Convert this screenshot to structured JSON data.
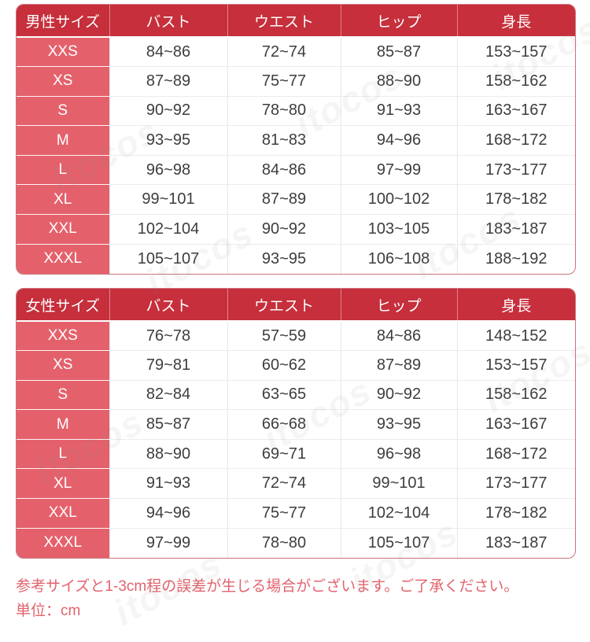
{
  "watermark": {
    "text": "itocos"
  },
  "colors": {
    "header_bg": "#c62f3b",
    "row_label_bg": "#e4616c",
    "note_text": "#e2636e",
    "table_border": "#c9747c",
    "body_text": "#3d3d3d"
  },
  "notes": {
    "line1": "参考サイズと1-3cm程の誤差が生じる場合がございます。ご了承ください。",
    "line2": "単位：cm"
  },
  "chart_data": [
    {
      "type": "table",
      "title": "男性サイズ",
      "columns": [
        "男性サイズ",
        "バスト",
        "ウエスト",
        "ヒップ",
        "身長"
      ],
      "rows": [
        [
          "XXS",
          "84~86",
          "72~74",
          "85~87",
          "153~157"
        ],
        [
          "XS",
          "87~89",
          "75~77",
          "88~90",
          "158~162"
        ],
        [
          "S",
          "90~92",
          "78~80",
          "91~93",
          "163~167"
        ],
        [
          "M",
          "93~95",
          "81~83",
          "94~96",
          "168~172"
        ],
        [
          "L",
          "96~98",
          "84~86",
          "97~99",
          "173~177"
        ],
        [
          "XL",
          "99~101",
          "87~89",
          "100~102",
          "178~182"
        ],
        [
          "XXL",
          "102~104",
          "90~92",
          "103~105",
          "183~187"
        ],
        [
          "XXXL",
          "105~107",
          "93~95",
          "106~108",
          "188~192"
        ]
      ]
    },
    {
      "type": "table",
      "title": "女性サイズ",
      "columns": [
        "女性サイズ",
        "バスト",
        "ウエスト",
        "ヒップ",
        "身長"
      ],
      "rows": [
        [
          "XXS",
          "76~78",
          "57~59",
          "84~86",
          "148~152"
        ],
        [
          "XS",
          "79~81",
          "60~62",
          "87~89",
          "153~157"
        ],
        [
          "S",
          "82~84",
          "63~65",
          "90~92",
          "158~162"
        ],
        [
          "M",
          "85~87",
          "66~68",
          "93~95",
          "163~167"
        ],
        [
          "L",
          "88~90",
          "69~71",
          "96~98",
          "168~172"
        ],
        [
          "XL",
          "91~93",
          "72~74",
          "99~101",
          "173~177"
        ],
        [
          "XXL",
          "94~96",
          "75~77",
          "102~104",
          "178~182"
        ],
        [
          "XXXL",
          "97~99",
          "78~80",
          "105~107",
          "183~187"
        ]
      ]
    }
  ]
}
